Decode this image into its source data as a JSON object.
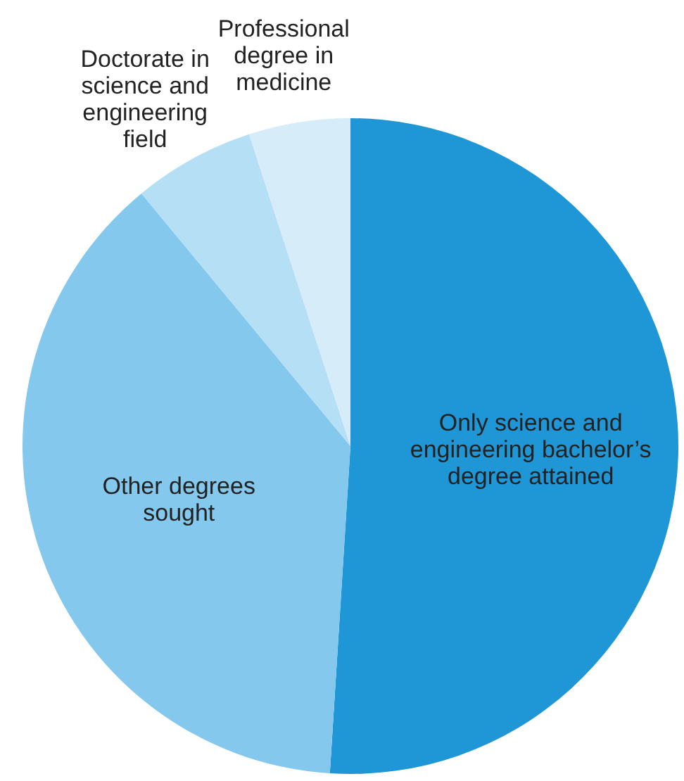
{
  "chart_data": {
    "type": "pie",
    "categories": [
      "Only science and engineering bachelor’s degree attained",
      "Other degrees sought",
      "Doctorate in science and engineering field",
      "Professional degree in medicine"
    ],
    "values": [
      51,
      38,
      6,
      5
    ],
    "colors": [
      "#1f97d6",
      "#84c8ee",
      "#b5dff4",
      "#d6ecf9"
    ]
  }
}
